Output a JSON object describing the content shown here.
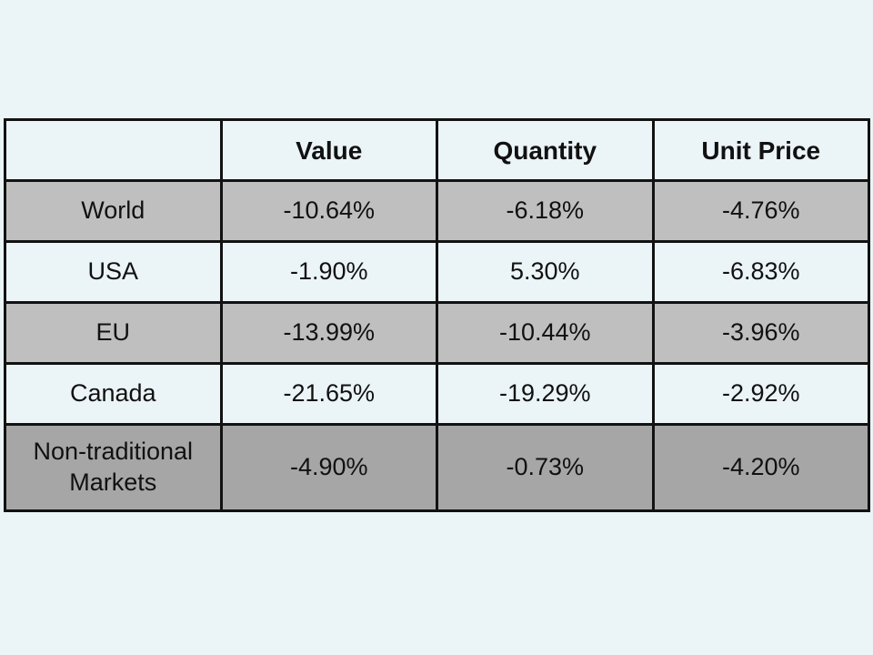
{
  "page": {
    "background": "#ebf4f7"
  },
  "table": {
    "columns": [
      "",
      "Value",
      "Quantity",
      "Unit Price"
    ],
    "rows": [
      {
        "label": "World",
        "values": [
          "-10.64%",
          "-6.18%",
          "-4.76%"
        ],
        "shade": "gray"
      },
      {
        "label": "USA",
        "values": [
          "-1.90%",
          "5.30%",
          "-6.83%"
        ],
        "shade": "light"
      },
      {
        "label": "EU",
        "values": [
          "-13.99%",
          "-10.44%",
          "-3.96%"
        ],
        "shade": "gray"
      },
      {
        "label": "Canada",
        "values": [
          "-21.65%",
          "-19.29%",
          "-2.92%"
        ],
        "shade": "light"
      },
      {
        "label": "Non-traditional Markets",
        "values": [
          "-4.90%",
          "-0.73%",
          "-4.20%"
        ],
        "shade": "dark"
      }
    ],
    "colors": {
      "gray_row": "#bfbfbf",
      "dark_row": "#a6a6a6",
      "light_row": "#ebf4f7",
      "border": "#121212",
      "text": "#111111"
    }
  },
  "chart_data": {
    "type": "table",
    "title": "",
    "columns": [
      "",
      "Value",
      "Quantity",
      "Unit Price"
    ],
    "categories": [
      "World",
      "USA",
      "EU",
      "Canada",
      "Non-traditional Markets"
    ],
    "series": [
      {
        "name": "Value",
        "values": [
          -10.64,
          -1.9,
          -13.99,
          -21.65,
          -4.9
        ]
      },
      {
        "name": "Quantity",
        "values": [
          -6.18,
          5.3,
          -10.44,
          -19.29,
          -0.73
        ]
      },
      {
        "name": "Unit Price",
        "values": [
          -4.76,
          -6.83,
          -3.96,
          -2.92,
          -4.2
        ]
      }
    ],
    "unit": "%"
  }
}
